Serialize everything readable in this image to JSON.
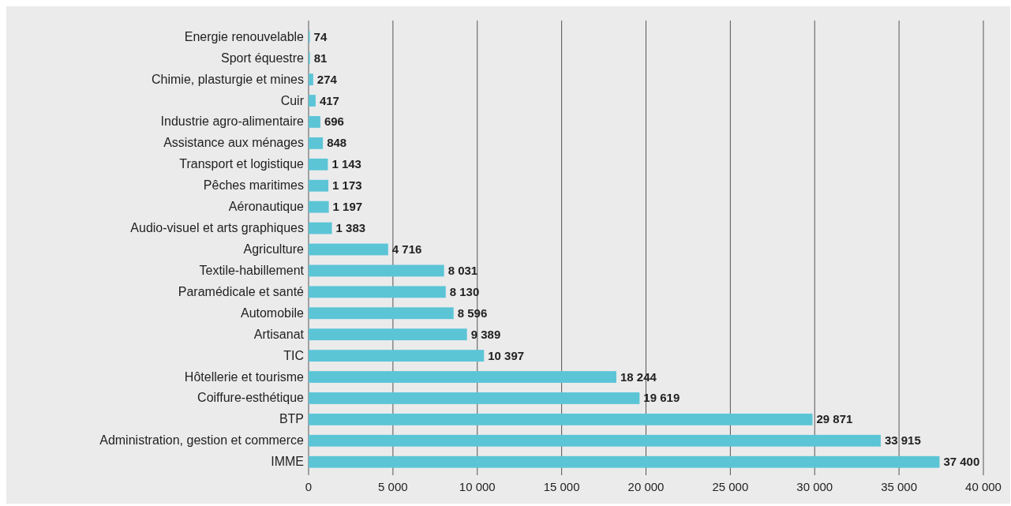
{
  "chart_data": {
    "type": "bar",
    "orientation": "horizontal",
    "categories": [
      "Energie renouvelable",
      "Sport équestre",
      "Chimie, plasturgie et mines",
      "Cuir",
      "Industrie agro-alimentaire",
      "Assistance aux ménages",
      "Transport et logistique",
      "Pêches maritimes",
      "Aéronautique",
      "Audio-visuel et arts graphiques",
      "Agriculture",
      "Textile-habillement",
      "Paramédicale et santé",
      "Automobile",
      "Artisanat",
      "TIC",
      "Hôtellerie et tourisme",
      "Coiffure-esthétique",
      "BTP",
      "Administration, gestion et commerce",
      "IMME"
    ],
    "values": [
      74,
      81,
      274,
      417,
      696,
      848,
      1143,
      1173,
      1197,
      1383,
      4716,
      8031,
      8130,
      8596,
      9389,
      10397,
      18244,
      19619,
      29871,
      33915,
      37400
    ],
    "value_labels": [
      "74",
      "81",
      "274",
      "417",
      "696",
      "848",
      "1 143",
      "1 173",
      "1 197",
      "1 383",
      "4 716",
      "8 031",
      "8 130",
      "8 596",
      "9 389",
      "10 397",
      "18 244",
      "19 619",
      "29 871",
      "33 915",
      "37 400"
    ],
    "color": "#5bc5d6",
    "xlim": [
      0,
      40000
    ],
    "xticks": [
      0,
      {
        "value": 5000,
        "label": "5 000"
      },
      {
        "value": 10000,
        "label": "10 000"
      },
      {
        "value": 15000,
        "label": "15 000"
      },
      {
        "value": 20000,
        "label": "20 000"
      },
      {
        "value": 25000,
        "label": "25 000"
      },
      {
        "value": 30000,
        "label": "30 000"
      },
      {
        "value": 35000,
        "label": "35 000"
      },
      {
        "value": 40000,
        "label": "40 000"
      }
    ],
    "grid": "x"
  }
}
